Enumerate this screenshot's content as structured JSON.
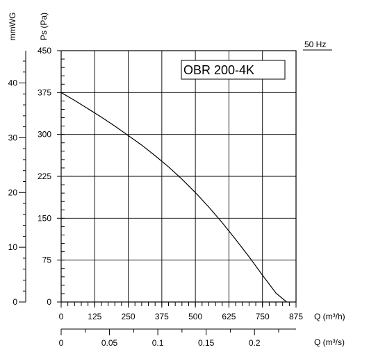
{
  "chart_data": {
    "type": "line",
    "model_label": "OBR 200-4K",
    "frequency_label": "50 Hz",
    "x_axis": {
      "label": "Q (m³/h)",
      "range": [
        0,
        875
      ],
      "ticks": [
        "0",
        "125",
        "250",
        "375",
        "500",
        "625",
        "750",
        "875"
      ],
      "tick_values": [
        0,
        125,
        250,
        375,
        500,
        625,
        750,
        875
      ]
    },
    "x2_axis": {
      "label": "Q (m³/s)",
      "range": [
        0,
        0.243
      ],
      "ticks": [
        "0",
        "0.05",
        "0.1",
        "0.15",
        "0.2"
      ],
      "tick_values": [
        0,
        0.05,
        0.1,
        0.15,
        0.2
      ]
    },
    "y_axis": {
      "label": "Ps (Pa)",
      "range": [
        0,
        450
      ],
      "ticks": [
        "0",
        "75",
        "150",
        "225",
        "300",
        "375",
        "450"
      ],
      "tick_values": [
        0,
        75,
        150,
        225,
        300,
        375,
        450
      ]
    },
    "y2_axis": {
      "label": "mmWG",
      "range": [
        0,
        45.9
      ],
      "ticks": [
        "0",
        "10",
        "20",
        "30",
        "40"
      ],
      "tick_values": [
        0,
        10,
        20,
        30,
        40
      ]
    },
    "grid": true,
    "series": [
      {
        "x": [
          0,
          50,
          100,
          150,
          200,
          250,
          300,
          350,
          400,
          450,
          500,
          550,
          600,
          650,
          700,
          750,
          800,
          840
        ],
        "y": [
          375,
          361,
          346,
          331,
          315,
          298,
          281,
          262,
          242,
          220,
          196,
          170,
          142,
          112,
          81,
          48,
          16,
          0
        ]
      }
    ]
  }
}
